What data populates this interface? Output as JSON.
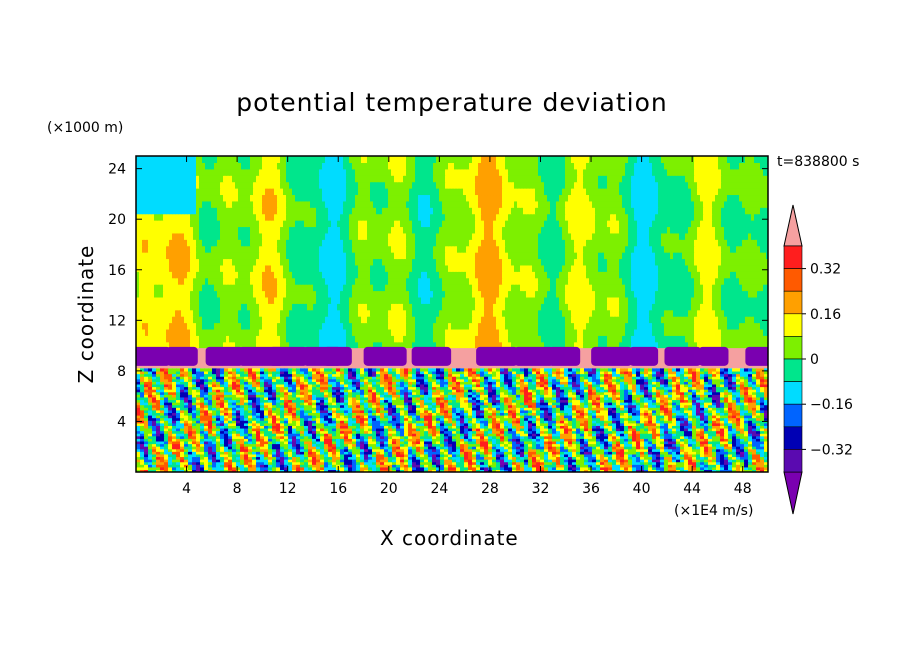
{
  "chart_data": {
    "type": "heatmap",
    "title": "potential temperature deviation",
    "xlabel": "X coordinate",
    "ylabel": "Z coordinate",
    "x_unit": "(×1E4 m/s)",
    "y_unit": "(×1000 m)",
    "time_label": "t=838800 s",
    "xlim": [
      0,
      50
    ],
    "ylim": [
      0,
      25
    ],
    "x_ticks": [
      4,
      8,
      12,
      16,
      20,
      24,
      28,
      32,
      36,
      40,
      44,
      48
    ],
    "y_ticks": [
      4,
      8,
      12,
      16,
      20,
      24
    ],
    "colorbar": {
      "levels": [
        -0.48,
        -0.4,
        -0.32,
        -0.24,
        -0.16,
        -0.08,
        0,
        0.08,
        0.16,
        0.24,
        0.32,
        0.4
      ],
      "labels": [
        "0.32",
        "0.16",
        "0",
        "−0.16",
        "−0.32"
      ],
      "label_values": [
        0.32,
        0.16,
        0,
        -0.16,
        -0.32
      ],
      "colors": [
        "#7a00b0",
        "#5a0ab0",
        "#0000b4",
        "#0064ff",
        "#00dcff",
        "#00e68c",
        "#7df000",
        "#ffff00",
        "#ffa000",
        "#ff5a00",
        "#ff1e1e",
        "#f5a0a0"
      ],
      "extend": "both"
    },
    "layers": [
      {
        "z_range": [
          10,
          25
        ],
        "description_values": "-0.08 to 0.08 mostly, scattered 0.16"
      },
      {
        "z_range": [
          8.2,
          9.8
        ],
        "description_values": "0.40 band with -0.48 patches"
      },
      {
        "z_range": [
          0,
          8.2
        ],
        "description_values": "mixed -0.48 to 0.32"
      }
    ]
  }
}
